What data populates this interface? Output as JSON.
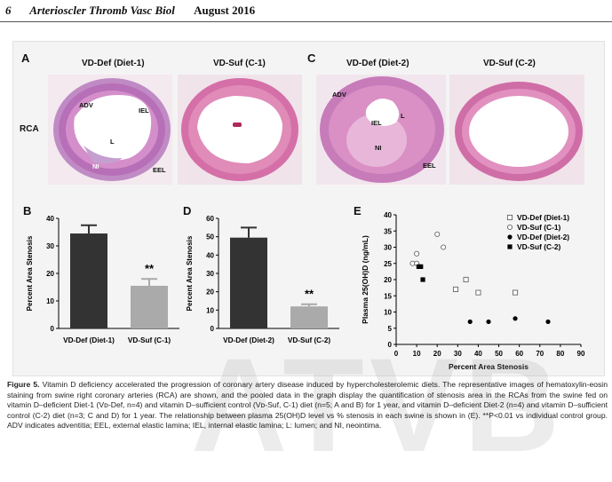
{
  "header": {
    "page_number": "6",
    "journal": "Arterioscler Thromb Vasc Biol",
    "date": "August 2016"
  },
  "panels": {
    "A": {
      "letter": "A",
      "row_label": "RCA",
      "left_title": "VD-Def (Diet-1)",
      "right_title": "VD-Suf (C-1)",
      "annotations": {
        "adv": "ADV",
        "iel": "IEL",
        "lumen": "L",
        "ni": "NI",
        "eel": "EEL"
      }
    },
    "C": {
      "letter": "C",
      "left_title": "VD-Def (Diet-2)",
      "right_title": "VD-Suf (C-2)",
      "annotations": {
        "adv": "ADV",
        "iel": "IEL",
        "lumen": "L",
        "ni": "NI",
        "eel": "EEL"
      }
    },
    "B": {
      "letter": "B"
    },
    "D": {
      "letter": "D"
    },
    "E": {
      "letter": "E"
    }
  },
  "chart_data": [
    {
      "panel": "B",
      "type": "bar",
      "categories": [
        "VD-Def (Diet-1)",
        "VD-Suf (C-1)"
      ],
      "values": [
        34.5,
        15.5
      ],
      "errors": [
        3,
        2.5
      ],
      "ylabel": "Percent Area Stenosis",
      "ylim": [
        0,
        40
      ],
      "yticks": [
        0,
        10,
        20,
        30,
        40
      ],
      "significance": "**",
      "colors": [
        "#333333",
        "#aaaaaa"
      ]
    },
    {
      "panel": "D",
      "type": "bar",
      "categories": [
        "VD-Def (Diet-2)",
        "VD-Suf (C-2)"
      ],
      "values": [
        49.5,
        12
      ],
      "errors": [
        5.5,
        1.2
      ],
      "ylabel": "Percent Area Stenosis",
      "ylim": [
        0,
        60
      ],
      "yticks": [
        0,
        10,
        20,
        30,
        40,
        50,
        60
      ],
      "significance": "**",
      "colors": [
        "#333333",
        "#aaaaaa"
      ]
    },
    {
      "panel": "E",
      "type": "scatter",
      "xlabel": "Percent Area Stenosis",
      "ylabel": "Plasma 25(OH)D (ng/mL)",
      "xlim": [
        0,
        90
      ],
      "ylim": [
        0,
        40
      ],
      "xticks": [
        0,
        10,
        20,
        30,
        40,
        50,
        60,
        70,
        80,
        90
      ],
      "yticks": [
        0,
        5,
        10,
        15,
        20,
        25,
        30,
        35,
        40
      ],
      "legend": "top-right",
      "series": [
        {
          "name": "VD-Def (Diet-1)",
          "marker": "open-square",
          "points": [
            [
              29,
              17
            ],
            [
              34,
              20
            ],
            [
              40,
              16
            ],
            [
              58,
              16
            ]
          ]
        },
        {
          "name": "VD-Suf (C-1)",
          "marker": "open-circle",
          "points": [
            [
              8,
              25
            ],
            [
              10,
              28
            ],
            [
              10,
              25
            ],
            [
              20,
              34
            ],
            [
              23,
              30
            ]
          ]
        },
        {
          "name": "VD-Def (Diet-2)",
          "marker": "filled-circle",
          "points": [
            [
              36,
              7
            ],
            [
              45,
              7
            ],
            [
              58,
              8
            ],
            [
              74,
              7
            ]
          ]
        },
        {
          "name": "VD-Suf (C-2)",
          "marker": "filled-square",
          "points": [
            [
              11,
              24
            ],
            [
              12,
              24
            ],
            [
              13,
              20
            ]
          ]
        }
      ]
    }
  ],
  "caption": {
    "label": "Figure 5.",
    "text": " Vitamin D deficiency accelerated the progression of coronary artery disease induced by hypercholesterolemic diets. The representative images of hematoxylin-eosin staining from swine right coronary arteries (RCA) are shown, and the pooled data in the graph display the quantification of stenosis area in the RCAs from the swine fed on vitamin D–deficient Diet-1 (Vᴅ-Def, n=4) and vitamin D–sufficient control (Vᴅ-Suf, C-1) diet (n=5; A and B) for 1 year, and vitamin D–deficient Diet-2 (n=4) and vitamin D–sufficient control (C-2) diet (n=3; C and D) for 1 year. The relationship between plasma 25(OH)D level vs % stenosis in each swine is shown in (E). **P<0.01 vs individual control group. ADV indicates adventitia; EEL, external elastic lamina; IEL, internal elastic lamina; L: lumen; and NI, neointima."
  },
  "watermark": "ATVB"
}
